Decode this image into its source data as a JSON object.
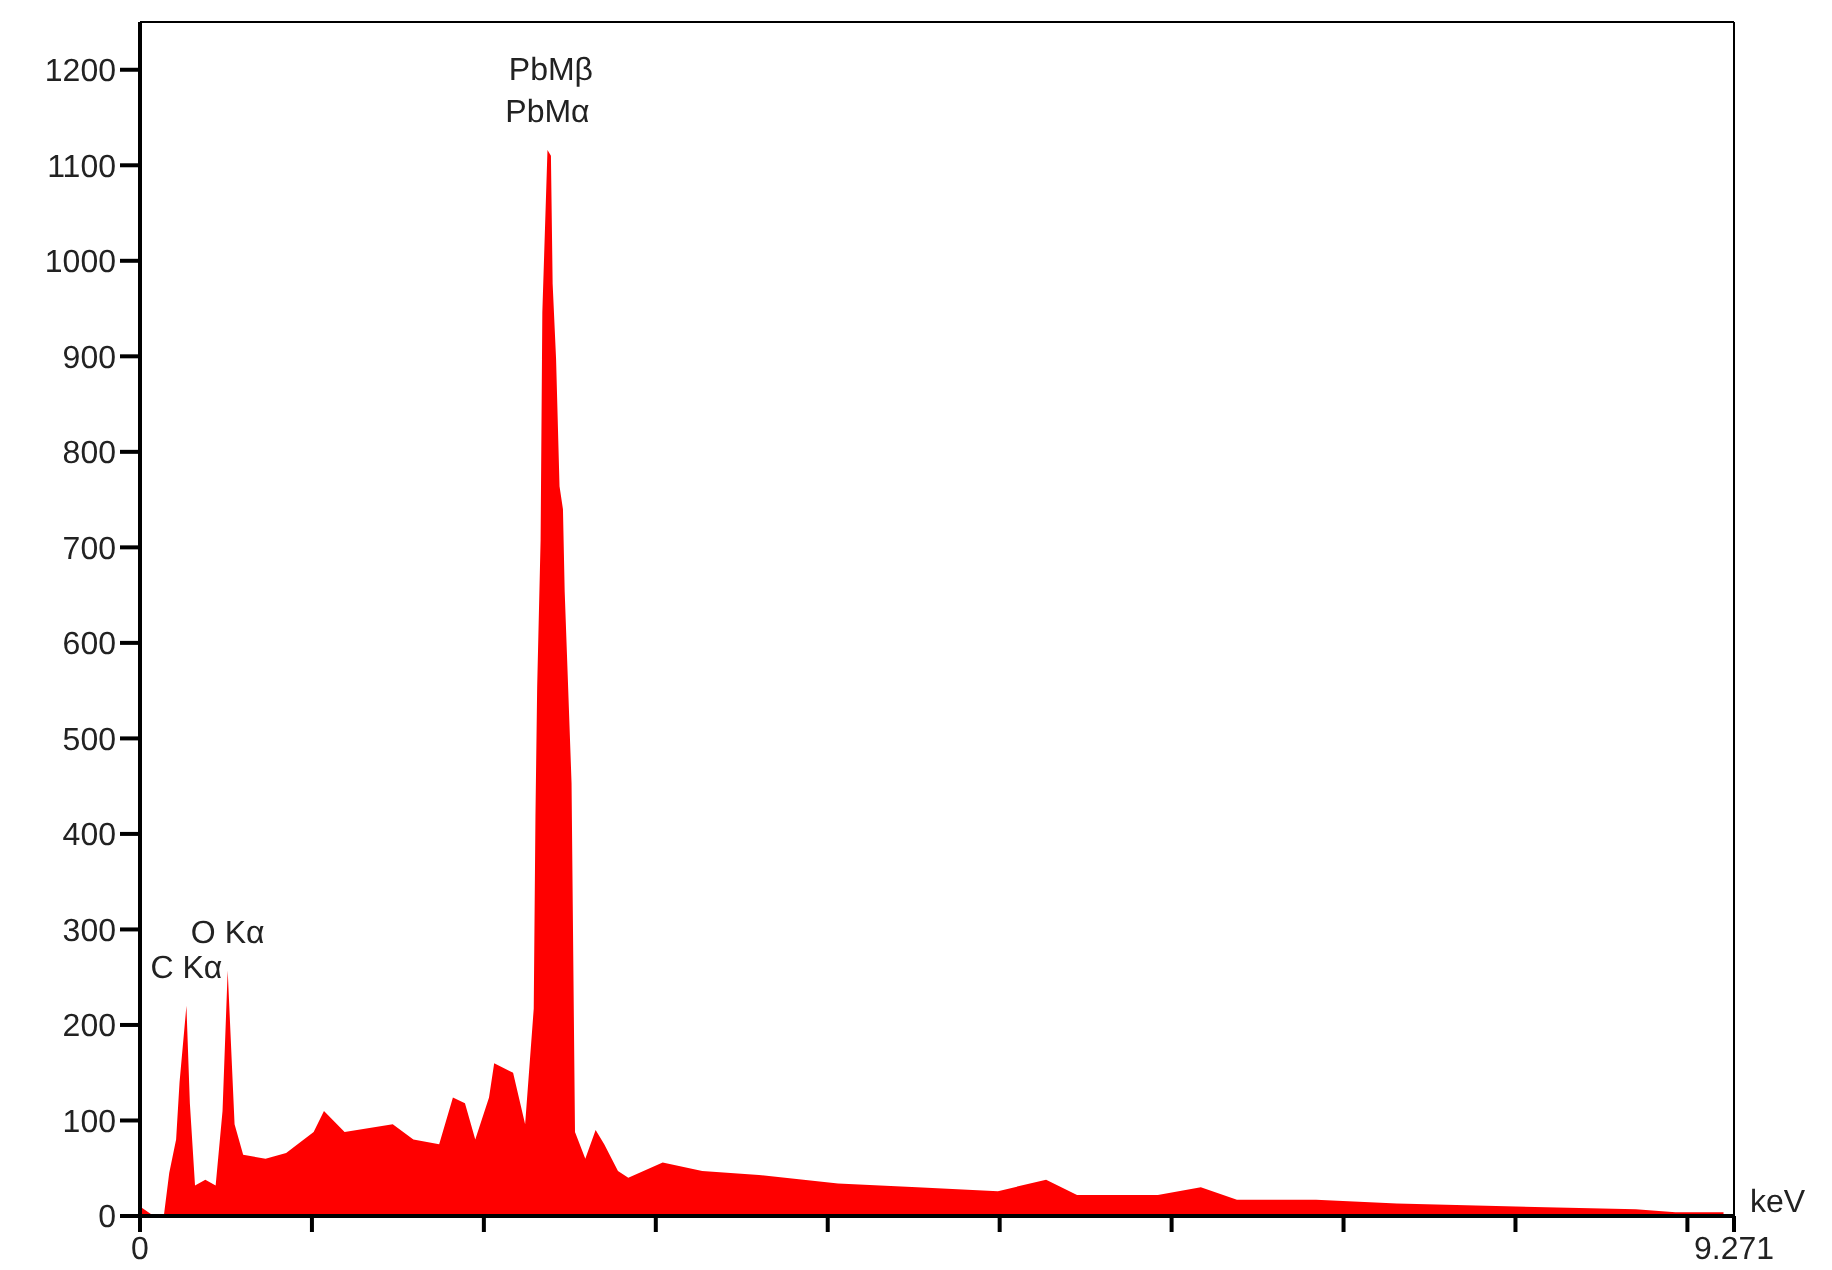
{
  "chart_data": {
    "type": "area",
    "xlabel": "keV",
    "color": "#ff0000",
    "x": [
      0.0,
      0.08,
      0.14,
      0.17,
      0.21,
      0.23,
      0.27,
      0.29,
      0.32,
      0.38,
      0.44,
      0.48,
      0.51,
      0.55,
      0.6,
      0.73,
      0.85,
      1.01,
      1.07,
      1.19,
      1.47,
      1.59,
      1.74,
      1.82,
      1.89,
      1.95,
      2.03,
      2.06,
      2.17,
      2.24,
      2.29,
      2.3,
      2.31,
      2.33,
      2.34,
      2.37,
      2.39,
      2.4,
      2.42,
      2.44,
      2.46,
      2.47,
      2.49,
      2.51,
      2.53,
      2.59,
      2.65,
      2.7,
      2.78,
      2.84,
      3.04,
      3.27,
      3.6,
      4.06,
      4.52,
      4.99,
      5.27,
      5.45,
      5.92,
      6.17,
      6.38,
      6.84,
      7.31,
      7.77,
      8.24,
      8.7,
      8.93,
      9.21
    ],
    "values": [
      10,
      0,
      2,
      45,
      80,
      140,
      220,
      118,
      32,
      38,
      32,
      110,
      257,
      96,
      64,
      60,
      66,
      88,
      110,
      88,
      96,
      80,
      75,
      124,
      118,
      80,
      124,
      160,
      150,
      96,
      217,
      418,
      554,
      708,
      946,
      1116,
      1110,
      976,
      897,
      764,
      740,
      654,
      554,
      453,
      88,
      60,
      90,
      75,
      47,
      40,
      56,
      47,
      43,
      34,
      30,
      26,
      38,
      22,
      22,
      30,
      17,
      17,
      13,
      11,
      9,
      7,
      4,
      4
    ],
    "xlim": [
      0,
      9.271
    ],
    "xticks": [
      0,
      {
        "value": 1,
        "label": null
      },
      {
        "value": 2,
        "label": null
      },
      {
        "value": 3,
        "label": null
      },
      {
        "value": 4,
        "label": null
      },
      {
        "value": 5,
        "label": null
      },
      {
        "value": 6,
        "label": null
      },
      {
        "value": 7,
        "label": null
      },
      {
        "value": 8,
        "label": null
      },
      {
        "value": 9,
        "label": null
      },
      9.271
    ],
    "ylim": [
      0,
      1250
    ],
    "yticks": [
      0,
      100,
      200,
      300,
      400,
      500,
      600,
      700,
      800,
      900,
      1000,
      1100,
      1200
    ],
    "annotations": [
      {
        "text": "C Kα",
        "x": 0.27,
        "y": 220
      },
      {
        "text": "O Kα",
        "x": 0.51,
        "y": 257
      },
      {
        "text": "PbMα",
        "x": 2.37,
        "y": 1116
      },
      {
        "text": "PbMβ",
        "x": 2.39,
        "y": 1110
      }
    ]
  }
}
